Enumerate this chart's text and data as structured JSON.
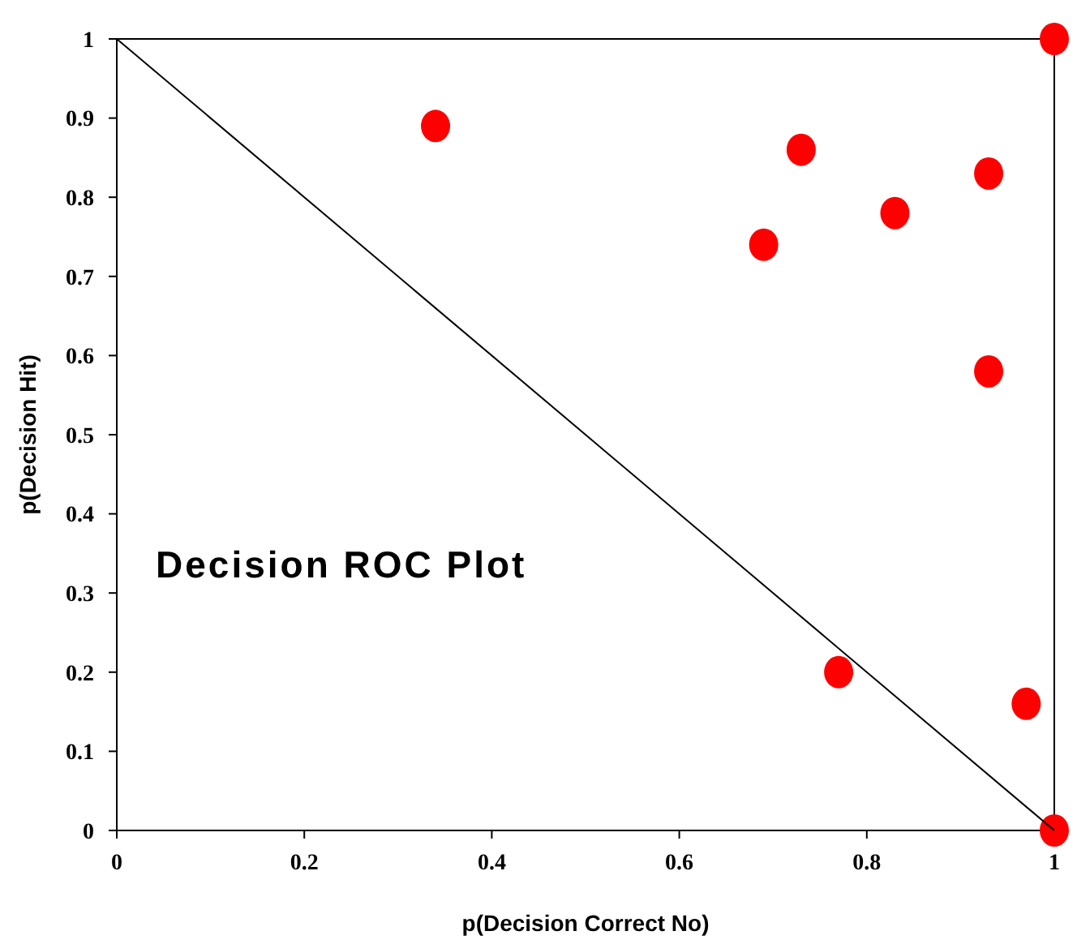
{
  "chart_data": {
    "type": "scatter",
    "title": "Decision ROC Plot",
    "xlabel": "p(Decision Correct No)",
    "ylabel": "p(Decision Hit)",
    "xlim": [
      0,
      1
    ],
    "ylim": [
      0,
      1
    ],
    "xticks": [
      0,
      0.2,
      0.4,
      0.6,
      0.8,
      1
    ],
    "yticks": [
      0,
      0.1,
      0.2,
      0.3,
      0.4,
      0.5,
      0.6,
      0.7,
      0.8,
      0.9,
      1
    ],
    "grid": false,
    "series": [
      {
        "color": "#ff0000",
        "marker": "circle",
        "x": [
          0.34,
          0.73,
          0.69,
          0.83,
          0.93,
          0.93,
          0.77,
          0.97,
          1,
          1
        ],
        "values": [
          0.89,
          0.86,
          0.74,
          0.78,
          0.83,
          0.58,
          0.2,
          0.16,
          1,
          0
        ]
      },
      {
        "type": "line",
        "color": "#000000",
        "line_style": "solid",
        "x": [
          0,
          1
        ],
        "values": [
          1,
          0
        ]
      }
    ]
  }
}
